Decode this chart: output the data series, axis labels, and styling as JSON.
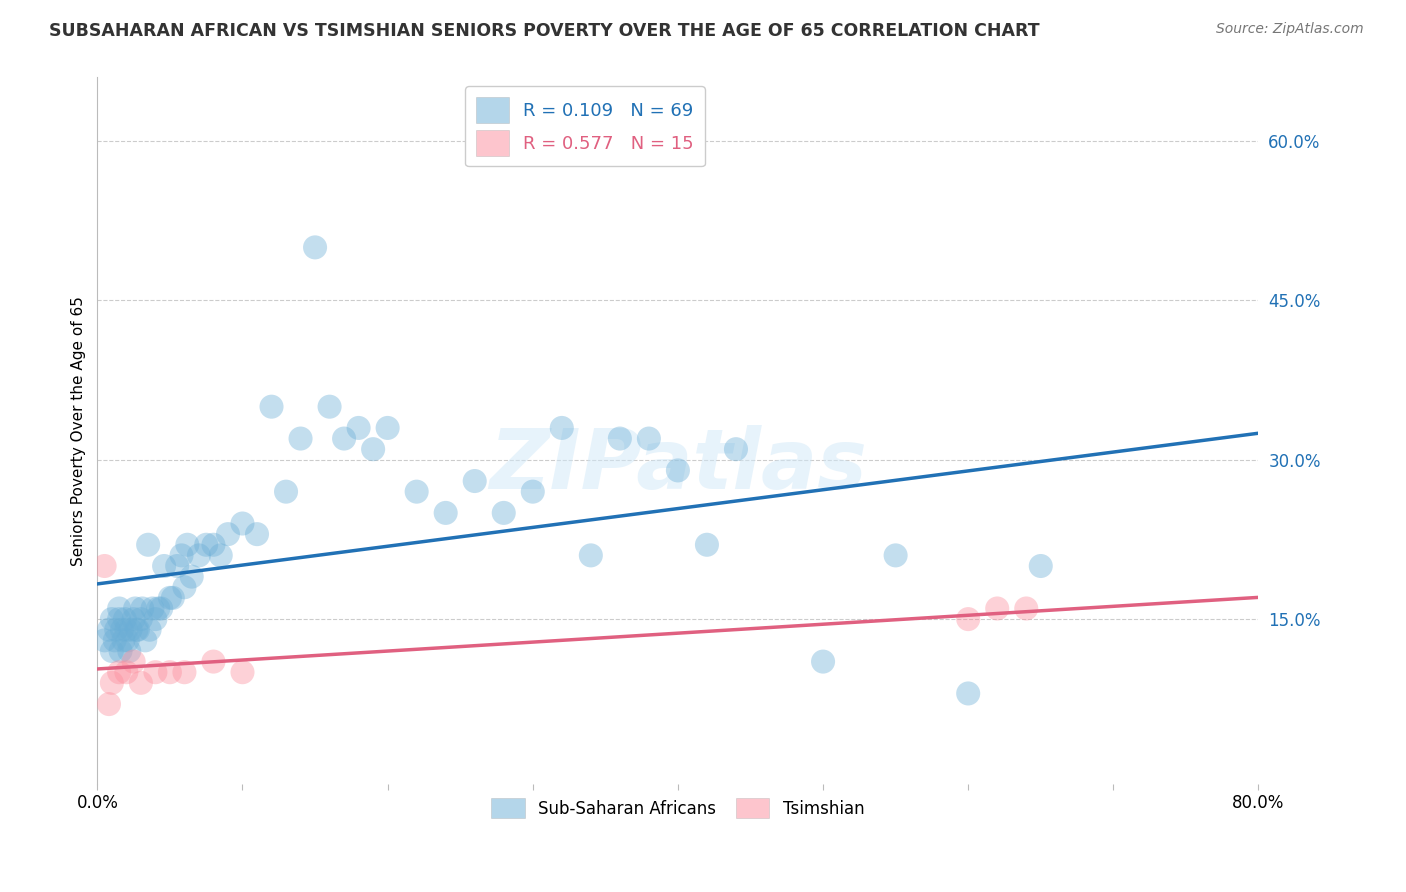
{
  "title": "SUBSAHARAN AFRICAN VS TSIMSHIAN SENIORS POVERTY OVER THE AGE OF 65 CORRELATION CHART",
  "source": "Source: ZipAtlas.com",
  "ylabel": "Seniors Poverty Over the Age of 65",
  "xlim": [
    0.0,
    0.8
  ],
  "ylim": [
    -0.005,
    0.66
  ],
  "xticks": [
    0.0,
    0.1,
    0.2,
    0.3,
    0.4,
    0.5,
    0.6,
    0.7,
    0.8
  ],
  "xticklabels_map": {
    "0.0": "0.0%",
    "0.8": "80.0%"
  },
  "yticks_right": [
    0.15,
    0.3,
    0.45,
    0.6
  ],
  "yticklabels_right": [
    "15.0%",
    "30.0%",
    "45.0%",
    "60.0%"
  ],
  "grid_color": "#cccccc",
  "background_color": "#ffffff",
  "watermark": "ZIPatlas",
  "legend_r1": "R = 0.109",
  "legend_n1": "N = 69",
  "legend_r2": "R = 0.577",
  "legend_n2": "N = 15",
  "blue_color": "#6baed6",
  "pink_color": "#fc8d9c",
  "blue_line_color": "#2171b5",
  "pink_line_color": "#e06080",
  "legend_label1": "Sub-Saharan Africans",
  "legend_label2": "Tsimshian",
  "blue_x": [
    0.005,
    0.008,
    0.01,
    0.01,
    0.012,
    0.013,
    0.015,
    0.015,
    0.016,
    0.017,
    0.018,
    0.019,
    0.02,
    0.021,
    0.022,
    0.023,
    0.025,
    0.026,
    0.027,
    0.028,
    0.03,
    0.031,
    0.033,
    0.035,
    0.036,
    0.038,
    0.04,
    0.042,
    0.044,
    0.046,
    0.05,
    0.052,
    0.055,
    0.058,
    0.06,
    0.062,
    0.065,
    0.07,
    0.075,
    0.08,
    0.085,
    0.09,
    0.1,
    0.11,
    0.12,
    0.13,
    0.14,
    0.15,
    0.16,
    0.17,
    0.18,
    0.19,
    0.2,
    0.22,
    0.24,
    0.26,
    0.28,
    0.3,
    0.32,
    0.34,
    0.36,
    0.38,
    0.4,
    0.42,
    0.44,
    0.5,
    0.55,
    0.6,
    0.65
  ],
  "blue_y": [
    0.13,
    0.14,
    0.12,
    0.15,
    0.13,
    0.14,
    0.16,
    0.15,
    0.12,
    0.14,
    0.13,
    0.15,
    0.14,
    0.13,
    0.12,
    0.14,
    0.15,
    0.16,
    0.14,
    0.14,
    0.15,
    0.16,
    0.13,
    0.22,
    0.14,
    0.16,
    0.15,
    0.16,
    0.16,
    0.2,
    0.17,
    0.17,
    0.2,
    0.21,
    0.18,
    0.22,
    0.19,
    0.21,
    0.22,
    0.22,
    0.21,
    0.23,
    0.24,
    0.23,
    0.35,
    0.27,
    0.32,
    0.5,
    0.35,
    0.32,
    0.33,
    0.31,
    0.33,
    0.27,
    0.25,
    0.28,
    0.25,
    0.27,
    0.33,
    0.21,
    0.32,
    0.32,
    0.29,
    0.22,
    0.31,
    0.11,
    0.21,
    0.08,
    0.2
  ],
  "pink_x": [
    0.005,
    0.008,
    0.01,
    0.015,
    0.02,
    0.025,
    0.03,
    0.04,
    0.05,
    0.06,
    0.08,
    0.1,
    0.6,
    0.62,
    0.64
  ],
  "pink_y": [
    0.2,
    0.07,
    0.09,
    0.1,
    0.1,
    0.11,
    0.09,
    0.1,
    0.1,
    0.1,
    0.11,
    0.1,
    0.15,
    0.16,
    0.16
  ]
}
